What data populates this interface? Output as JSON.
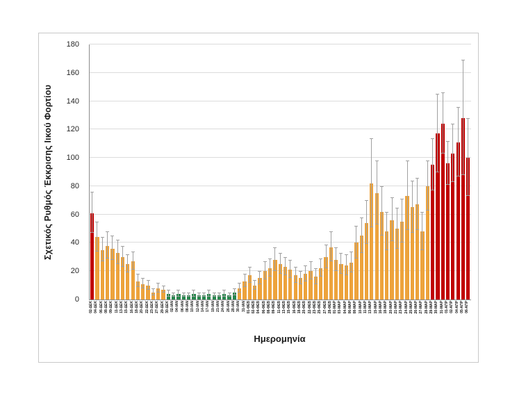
{
  "chart_data": {
    "type": "bar",
    "title": "",
    "xlabel": "Ημερομηνία",
    "ylabel": "Σχετικός Ρυθμός Έκκρισης Ιικού Φορτίου",
    "ylim": [
      0,
      180
    ],
    "ytick_step": 20,
    "grid": true,
    "legend": "none",
    "colors": {
      "red": "#C00000",
      "orange": "#EDA33C",
      "green": "#27874D",
      "error": "#A0A0A0"
    },
    "categories": [
      "02-ΔΕΚ",
      "04-ΔΕΚ",
      "06-ΔΕΚ",
      "08-ΔΕΚ",
      "09-ΔΕΚ",
      "11-ΔΕΚ",
      "13-ΔΕΚ",
      "15-ΔΕΚ",
      "16-ΔΕΚ",
      "18-ΔΕΚ",
      "20-ΔΕΚ",
      "22-ΔΕΚ",
      "23-ΔΕΚ",
      "27-ΔΕΚ",
      "29-ΔΕΚ",
      "30-ΔΕΚ",
      "02-ΙΑΝ",
      "04-ΙΑΝ",
      "06-ΙΑΝ",
      "08-ΙΑΝ",
      "10-ΙΑΝ",
      "12-ΙΑΝ",
      "14-ΙΑΝ",
      "17-ΙΑΝ",
      "19-ΙΑΝ",
      "21-ΙΑΝ",
      "24-ΙΑΝ",
      "26-ΙΑΝ",
      "28-ΙΑΝ",
      "30-ΙΑΝ",
      "31-ΙΑΝ",
      "01-ΦΕΒ",
      "02-ΦΕΒ",
      "04-ΦΕΒ",
      "06-ΦΕΒ",
      "08-ΦΕΒ",
      "09-ΦΕΒ",
      "11-ΦΕΒ",
      "13-ΦΕΒ",
      "15-ΦΕΒ",
      "16-ΦΕΒ",
      "18-ΦΕΒ",
      "20-ΦΕΒ",
      "22-ΦΕΒ",
      "23-ΦΕΒ",
      "25-ΦΕΒ",
      "27-ΦΕΒ",
      "28-ΦΕΒ",
      "01-ΜΑΡ",
      "03-ΜΑΡ",
      "04-ΜΑΡ",
      "06-ΜΑΡ",
      "08-ΜΑΡ",
      "10-ΜΑΡ",
      "11-ΜΑΡ",
      "13-ΜΑΡ",
      "15-ΜΑΡ",
      "16-ΜΑΡ",
      "18-ΜΑΡ",
      "20-ΜΑΡ",
      "21-ΜΑΡ",
      "23-ΜΑΡ",
      "24-ΜΑΡ",
      "25-ΜΑΡ",
      "26-ΜΑΡ",
      "27-ΜΑΡ",
      "28-ΜΑΡ",
      "29-ΜΑΡ",
      "30-ΜΑΡ",
      "31-ΜΑΡ",
      "01-ΑΠΡ",
      "02-ΑΠΡ",
      "04-ΑΠΡ",
      "05-ΑΠΡ",
      "06-ΑΠΡ"
    ],
    "values": [
      61,
      44,
      35,
      38,
      36,
      33,
      30,
      25,
      27,
      13,
      11,
      10,
      5,
      8,
      7,
      4,
      3,
      4,
      3,
      3,
      4,
      3,
      3,
      4,
      3,
      3,
      4,
      3,
      5,
      8,
      13,
      17,
      10,
      15,
      20,
      22,
      28,
      25,
      23,
      21,
      17,
      15,
      18,
      20,
      16,
      22,
      30,
      37,
      28,
      25,
      24,
      26,
      40,
      45,
      54,
      82,
      75,
      62,
      48,
      56,
      50,
      55,
      73,
      65,
      67,
      48,
      80,
      95,
      117,
      124,
      96,
      103,
      111,
      128,
      100
    ],
    "errors": [
      14,
      10,
      8,
      9,
      8,
      8,
      7,
      6,
      6,
      4,
      3,
      3,
      2,
      3,
      2,
      2,
      1,
      2,
      1,
      1,
      2,
      1,
      1,
      2,
      1,
      1,
      2,
      1,
      2,
      3,
      4,
      5,
      3,
      4,
      6,
      6,
      8,
      7,
      6,
      6,
      5,
      4,
      5,
      6,
      5,
      6,
      8,
      10,
      8,
      7,
      7,
      7,
      11,
      12,
      15,
      31,
      22,
      17,
      13,
      15,
      14,
      15,
      24,
      18,
      18,
      13,
      17,
      18,
      27,
      21,
      15,
      20,
      24,
      40,
      27
    ],
    "bar_colors": [
      "red",
      "orange",
      "orange",
      "orange",
      "orange",
      "orange",
      "orange",
      "orange",
      "orange",
      "orange",
      "orange",
      "orange",
      "orange",
      "orange",
      "orange",
      "green",
      "green",
      "green",
      "green",
      "green",
      "green",
      "green",
      "green",
      "green",
      "green",
      "green",
      "green",
      "green",
      "green",
      "orange",
      "orange",
      "orange",
      "orange",
      "orange",
      "orange",
      "orange",
      "orange",
      "orange",
      "orange",
      "orange",
      "orange",
      "orange",
      "orange",
      "orange",
      "orange",
      "orange",
      "orange",
      "orange",
      "orange",
      "orange",
      "orange",
      "orange",
      "orange",
      "orange",
      "orange",
      "orange",
      "orange",
      "orange",
      "orange",
      "orange",
      "orange",
      "orange",
      "orange",
      "orange",
      "orange",
      "orange",
      "orange",
      "red",
      "red",
      "red",
      "red",
      "red",
      "red",
      "red",
      "red"
    ]
  }
}
